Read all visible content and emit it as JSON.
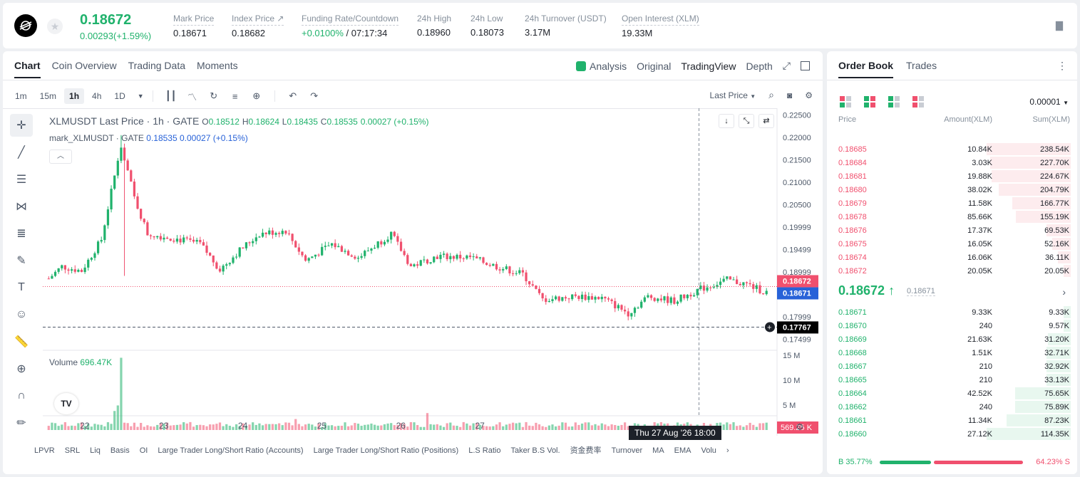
{
  "header": {
    "last_price": "0.18672",
    "change": "0.00293(+1.59%)",
    "stats": [
      {
        "label": "Mark Price",
        "value": "0.18671"
      },
      {
        "label": "Index Price ↗",
        "value": "0.18682"
      },
      {
        "label": "Funding Rate/Countdown",
        "value_green": "+0.0100%",
        "value": " / 07:17:34"
      },
      {
        "label": "24h High",
        "value": "0.18960"
      },
      {
        "label": "24h Low",
        "value": "0.18073"
      },
      {
        "label": "24h Turnover (USDT)",
        "value": "3.17M"
      },
      {
        "label": "Open Interest (XLM)",
        "value": "19.33M"
      }
    ]
  },
  "chart_panel": {
    "tabs": [
      "Chart",
      "Coin Overview",
      "Trading Data",
      "Moments"
    ],
    "view_tabs": [
      "Analysis",
      "Original",
      "TradingView",
      "Depth"
    ],
    "intervals": [
      "1m",
      "15m",
      "1h",
      "4h",
      "1D"
    ],
    "active_interval": "1h",
    "price_type": "Last Price",
    "legend": {
      "symbol": "XLMUSDT Last Price · 1h · GATE",
      "open": "0.18512",
      "high": "0.18624",
      "low": "0.18435",
      "close": "0.18535",
      "change": "0.00027 (+0.15%)",
      "mark_label": "mark_XLMUSDT · GATE",
      "mark_value": "0.18535",
      "mark_change": "0.00027 (+0.15%)"
    },
    "volume": {
      "label": "Volume",
      "value": "696.47K"
    },
    "crosshair_time": "Thu 27 Aug '26   18:00",
    "bottom_indicators": [
      "LPVR",
      "SRL",
      "Liq",
      "Basis",
      "OI",
      "Large Trader Long/Short Ratio (Accounts)",
      "Large Trader Long/Short Ratio (Positions)",
      "L.S Ratio",
      "Taker B.S Vol.",
      "资金费率",
      "Turnover",
      "MA",
      "EMA",
      "Volu"
    ]
  },
  "chart_data": {
    "type": "candlestick",
    "x_ticks": [
      "22",
      "23",
      "24",
      "25",
      "26",
      "27"
    ],
    "y_ticks": [
      "0.22500",
      "0.22000",
      "0.21500",
      "0.21000",
      "0.20500",
      "0.19999",
      "0.19499",
      "0.18999",
      "0.17999",
      "0.17499"
    ],
    "ylim": [
      0.1725,
      0.2265
    ],
    "volume_ticks": [
      "15 M",
      "10 M",
      "5 M"
    ],
    "volume_max": 16,
    "price_labels": [
      {
        "value": "0.18672",
        "y": 0.18672,
        "color": "#f0506e"
      },
      {
        "value": "0.18671",
        "y": 0.18671,
        "color": "#2862d8"
      },
      {
        "value": "0.17767",
        "y": 0.17767,
        "color": "#000000"
      }
    ],
    "volume_label": "569.25 K",
    "anchors": [
      {
        "i": 0,
        "v": 0.1885
      },
      {
        "i": 4,
        "v": 0.1912
      },
      {
        "i": 10,
        "v": 0.1902
      },
      {
        "i": 16,
        "v": 0.1972
      },
      {
        "i": 22,
        "v": 0.2185
      },
      {
        "i": 26,
        "v": 0.2065
      },
      {
        "i": 30,
        "v": 0.1985
      },
      {
        "i": 38,
        "v": 0.1975
      },
      {
        "i": 46,
        "v": 0.1962
      },
      {
        "i": 52,
        "v": 0.1905
      },
      {
        "i": 58,
        "v": 0.1948
      },
      {
        "i": 64,
        "v": 0.1985
      },
      {
        "i": 72,
        "v": 0.1992
      },
      {
        "i": 78,
        "v": 0.1925
      },
      {
        "i": 86,
        "v": 0.1962
      },
      {
        "i": 94,
        "v": 0.1932
      },
      {
        "i": 104,
        "v": 0.1985
      },
      {
        "i": 110,
        "v": 0.1912
      },
      {
        "i": 118,
        "v": 0.1935
      },
      {
        "i": 128,
        "v": 0.1932
      },
      {
        "i": 136,
        "v": 0.1912
      },
      {
        "i": 144,
        "v": 0.1895
      },
      {
        "i": 150,
        "v": 0.1838
      },
      {
        "i": 160,
        "v": 0.1845
      },
      {
        "i": 168,
        "v": 0.1842
      },
      {
        "i": 176,
        "v": 0.1808
      },
      {
        "i": 182,
        "v": 0.1845
      },
      {
        "i": 190,
        "v": 0.1835
      },
      {
        "i": 198,
        "v": 0.1862
      },
      {
        "i": 206,
        "v": 0.1882
      },
      {
        "i": 212,
        "v": 0.1872
      },
      {
        "i": 218,
        "v": 0.18535
      }
    ],
    "candle_count": 219
  },
  "order_book": {
    "tabs": [
      "Order Book",
      "Trades"
    ],
    "tick_size": "0.00001",
    "headers": [
      "Price",
      "Amount(XLM)",
      "Sum(XLM)"
    ],
    "asks": [
      {
        "price": "0.18685",
        "amount": "10.84K",
        "sum": "238.54K",
        "depth": 238.54
      },
      {
        "price": "0.18684",
        "amount": "3.03K",
        "sum": "227.70K",
        "depth": 227.7
      },
      {
        "price": "0.18681",
        "amount": "19.88K",
        "sum": "224.67K",
        "depth": 224.67
      },
      {
        "price": "0.18680",
        "amount": "38.02K",
        "sum": "204.79K",
        "depth": 204.79
      },
      {
        "price": "0.18679",
        "amount": "11.58K",
        "sum": "166.77K",
        "depth": 166.77
      },
      {
        "price": "0.18678",
        "amount": "85.66K",
        "sum": "155.19K",
        "depth": 155.19
      },
      {
        "price": "0.18676",
        "amount": "17.37K",
        "sum": "69.53K",
        "depth": 69.53
      },
      {
        "price": "0.18675",
        "amount": "16.05K",
        "sum": "52.16K",
        "depth": 52.16
      },
      {
        "price": "0.18674",
        "amount": "16.06K",
        "sum": "36.11K",
        "depth": 36.11
      },
      {
        "price": "0.18672",
        "amount": "20.05K",
        "sum": "20.05K",
        "depth": 20.05
      }
    ],
    "mid_price": "0.18672 ↑",
    "mark_price": "0.18671",
    "bids": [
      {
        "price": "0.18671",
        "amount": "9.33K",
        "sum": "9.33K",
        "depth": 9.33
      },
      {
        "price": "0.18670",
        "amount": "240",
        "sum": "9.57K",
        "depth": 9.57
      },
      {
        "price": "0.18669",
        "amount": "21.63K",
        "sum": "31.20K",
        "depth": 31.2
      },
      {
        "price": "0.18668",
        "amount": "1.51K",
        "sum": "32.71K",
        "depth": 32.71
      },
      {
        "price": "0.18667",
        "amount": "210",
        "sum": "32.92K",
        "depth": 32.92
      },
      {
        "price": "0.18665",
        "amount": "210",
        "sum": "33.13K",
        "depth": 33.13
      },
      {
        "price": "0.18664",
        "amount": "42.52K",
        "sum": "75.65K",
        "depth": 75.65
      },
      {
        "price": "0.18662",
        "amount": "240",
        "sum": "75.89K",
        "depth": 75.89
      },
      {
        "price": "0.18661",
        "amount": "11.34K",
        "sum": "87.23K",
        "depth": 87.23
      },
      {
        "price": "0.18660",
        "amount": "27.12K",
        "sum": "114.35K",
        "depth": 114.35
      }
    ],
    "buy_ratio_label": "B 35.77%",
    "sell_ratio_label": "64.23% S",
    "buy_ratio": 0.3577,
    "colors": {
      "up": "#20b26c",
      "down": "#f0506e"
    }
  }
}
